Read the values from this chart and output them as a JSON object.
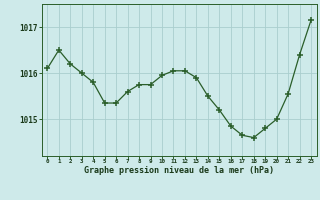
{
  "hours": [
    0,
    1,
    2,
    3,
    4,
    5,
    6,
    7,
    8,
    9,
    10,
    11,
    12,
    13,
    14,
    15,
    16,
    17,
    18,
    19,
    20,
    21,
    22,
    23
  ],
  "pressure": [
    1016.1,
    1016.5,
    1016.2,
    1016.0,
    1015.8,
    1015.35,
    1015.35,
    1015.6,
    1015.75,
    1015.75,
    1015.95,
    1016.05,
    1016.05,
    1015.9,
    1015.5,
    1015.2,
    1014.85,
    1014.65,
    1014.6,
    1014.8,
    1015.0,
    1015.55,
    1016.4,
    1017.15
  ],
  "line_color": "#2a5e2a",
  "marker_color": "#2a5e2a",
  "bg_color": "#ceeaea",
  "grid_color": "#aacece",
  "xlabel": "Graphe pression niveau de la mer (hPa)",
  "xlabel_color": "#1a3a1a",
  "yticks": [
    1015,
    1016,
    1017
  ],
  "ylim": [
    1014.2,
    1017.5
  ],
  "xlim": [
    -0.5,
    23.5
  ]
}
